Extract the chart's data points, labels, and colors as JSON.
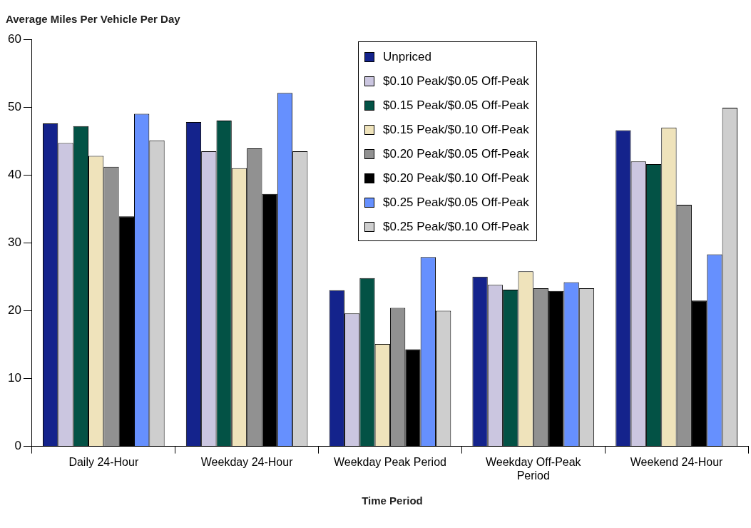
{
  "chart_data": {
    "type": "bar",
    "ylabel": "Average Miles Per Vehicle Per Day",
    "xlabel": "Time Period",
    "categories": [
      "Daily 24-Hour",
      "Weekday 24-Hour",
      "Weekday Peak Period",
      "Weekday Off-Peak Period",
      "Weekend 24-Hour"
    ],
    "series": [
      {
        "name": "Unpriced",
        "color": "#14238c",
        "values": [
          47.6,
          47.8,
          23.0,
          25.0,
          46.6
        ]
      },
      {
        "name": "$0.10 Peak/$0.05 Off-Peak",
        "color": "#cbc6e0",
        "values": [
          44.7,
          43.5,
          19.6,
          23.8,
          42.0
        ]
      },
      {
        "name": "$0.15 Peak/$0.05 Off-Peak",
        "color": "#035245",
        "values": [
          47.2,
          48.0,
          24.8,
          23.1,
          41.6
        ]
      },
      {
        "name": "$0.15 Peak/$0.10 Off-Peak",
        "color": "#efe3bb",
        "values": [
          42.8,
          41.0,
          15.1,
          25.8,
          47.0
        ]
      },
      {
        "name": "$0.20 Peak/$0.05 Off-Peak",
        "color": "#919191",
        "values": [
          41.2,
          43.9,
          20.4,
          23.3,
          35.6
        ]
      },
      {
        "name": "$0.20 Peak/$0.10 Off-Peak",
        "color": "#000000",
        "values": [
          33.9,
          37.2,
          14.3,
          22.9,
          21.5
        ]
      },
      {
        "name": "$0.25 Peak/$0.05 Off-Peak",
        "color": "#6690fe",
        "values": [
          49.0,
          52.1,
          27.9,
          24.2,
          28.3
        ]
      },
      {
        "name": "$0.25 Peak/$0.10 Off-Peak",
        "color": "#cecece",
        "values": [
          45.1,
          43.5,
          20.0,
          23.3,
          49.9
        ]
      }
    ],
    "ylim": [
      0,
      60
    ],
    "yticks": [
      0,
      10,
      20,
      30,
      40,
      50,
      60
    ],
    "grid": false,
    "legend": "top"
  }
}
